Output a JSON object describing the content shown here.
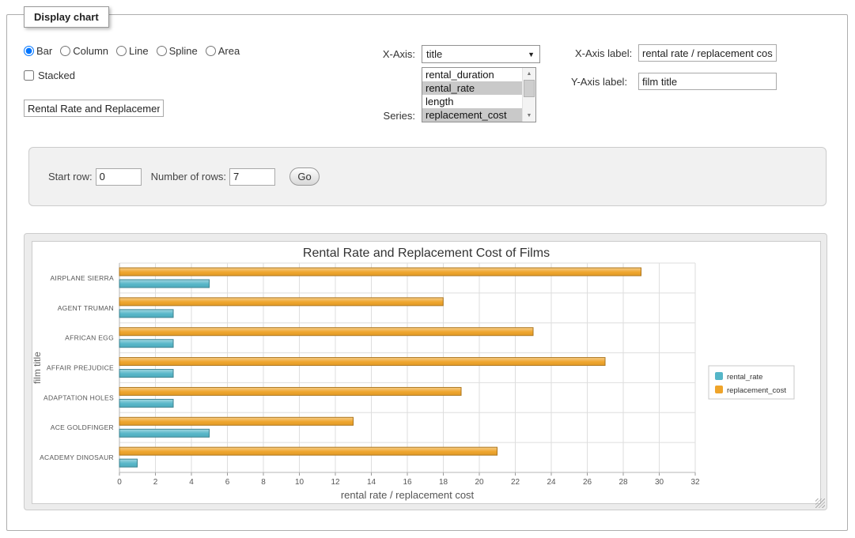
{
  "panel_title": "Display chart",
  "chart_type_options": [
    {
      "label": "Bar",
      "selected": true
    },
    {
      "label": "Column",
      "selected": false
    },
    {
      "label": "Line",
      "selected": false
    },
    {
      "label": "Spline",
      "selected": false
    },
    {
      "label": "Area",
      "selected": false
    }
  ],
  "stacked": {
    "label": "Stacked",
    "checked": false
  },
  "title_input": {
    "value": "Rental Rate and Replacement Cost of Films"
  },
  "x_axis": {
    "label": "X-Axis:",
    "selected": "title"
  },
  "series_select": {
    "label": "Series:",
    "options": [
      {
        "label": "rental_duration",
        "selected": false
      },
      {
        "label": "rental_rate",
        "selected": true
      },
      {
        "label": "length",
        "selected": false
      },
      {
        "label": "replacement_cost",
        "selected": true
      }
    ]
  },
  "x_axis_label": {
    "label": "X-Axis label:",
    "value": "rental rate / replacement cost"
  },
  "y_axis_label": {
    "label": "Y-Axis label:",
    "value": "film title"
  },
  "rows_panel": {
    "start_row_label": "Start row:",
    "start_row_value": "0",
    "num_rows_label": "Number of rows:",
    "num_rows_value": "7",
    "go_label": "Go"
  },
  "chart_data": {
    "type": "bar",
    "title": "Rental Rate and Replacement Cost of Films",
    "categories": [
      "AIRPLANE SIERRA",
      "AGENT TRUMAN",
      "AFRICAN EGG",
      "AFFAIR PREJUDICE",
      "ADAPTATION HOLES",
      "ACE GOLDFINGER",
      "ACADEMY DINOSAUR"
    ],
    "series": [
      {
        "name": "rental_rate",
        "color": "#55B6C8",
        "values": [
          4.99,
          2.99,
          2.99,
          2.99,
          2.99,
          4.99,
          0.99
        ]
      },
      {
        "name": "replacement_cost",
        "color": "#EFA42A",
        "values": [
          28.99,
          17.99,
          22.99,
          26.99,
          18.99,
          12.99,
          20.99
        ]
      }
    ],
    "xlabel": "rental rate / replacement cost",
    "ylabel": "film title",
    "xlim": [
      0,
      32
    ],
    "x_tick_step": 2,
    "grid": true,
    "legend_position": "right"
  }
}
